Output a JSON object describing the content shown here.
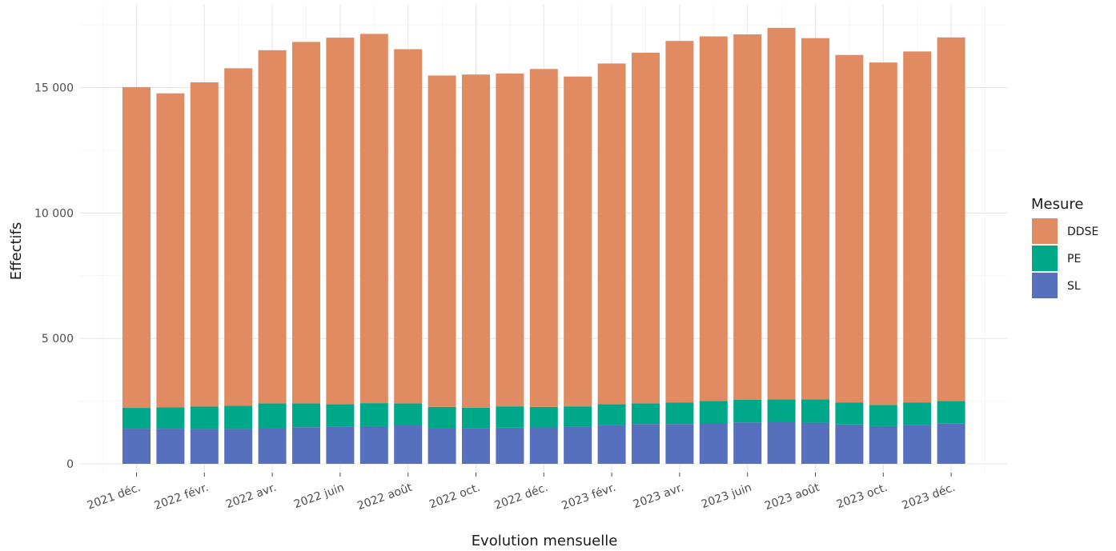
{
  "chart_data": {
    "type": "bar",
    "stacked": true,
    "xlabel": "Evolution mensuelle",
    "ylabel": "Effectifs",
    "ylim": [
      0,
      17900
    ],
    "yticks": [
      0,
      5000,
      10000,
      15000
    ],
    "ytick_labels": [
      "0",
      "5 000",
      "10 000",
      "15 000"
    ],
    "grid": true,
    "legend": {
      "title": "Mesure",
      "position": "right"
    },
    "categories": [
      "2021-12",
      "2022-01",
      "2022-02",
      "2022-03",
      "2022-04",
      "2022-05",
      "2022-06",
      "2022-07",
      "2022-08",
      "2022-09",
      "2022-10",
      "2022-11",
      "2022-12",
      "2023-01",
      "2023-02",
      "2023-03",
      "2023-04",
      "2023-05",
      "2023-06",
      "2023-07",
      "2023-08",
      "2023-09",
      "2023-10",
      "2023-11",
      "2023-12"
    ],
    "xtick_labels": [
      {
        "index": 0,
        "label": "2021 déc."
      },
      {
        "index": 2,
        "label": "2022 févr."
      },
      {
        "index": 4,
        "label": "2022 avr."
      },
      {
        "index": 6,
        "label": "2022 juin"
      },
      {
        "index": 8,
        "label": "2022 août"
      },
      {
        "index": 10,
        "label": "2022 oct."
      },
      {
        "index": 12,
        "label": "2022 déc."
      },
      {
        "index": 14,
        "label": "2023 févr."
      },
      {
        "index": 16,
        "label": "2023 avr."
      },
      {
        "index": 18,
        "label": "2023 juin"
      },
      {
        "index": 20,
        "label": "2023 août"
      },
      {
        "index": 22,
        "label": "2023 oct."
      },
      {
        "index": 24,
        "label": "2023 déc."
      }
    ],
    "series": [
      {
        "name": "SL",
        "color": "#5770BE",
        "values": [
          1400,
          1400,
          1390,
          1390,
          1420,
          1460,
          1470,
          1500,
          1530,
          1420,
          1430,
          1440,
          1450,
          1480,
          1560,
          1590,
          1590,
          1610,
          1650,
          1690,
          1640,
          1570,
          1500,
          1550,
          1600
        ]
      },
      {
        "name": "PE",
        "color": "#00A88A",
        "values": [
          830,
          850,
          890,
          930,
          990,
          950,
          910,
          920,
          880,
          850,
          810,
          850,
          820,
          810,
          820,
          820,
          860,
          900,
          900,
          880,
          930,
          880,
          850,
          900,
          900
        ]
      },
      {
        "name": "DDSE",
        "color": "#E08B61",
        "values": [
          12790,
          12520,
          12930,
          13450,
          14080,
          14410,
          14610,
          14720,
          14120,
          13210,
          13280,
          13270,
          13470,
          13150,
          13580,
          13980,
          14410,
          14530,
          14570,
          14810,
          14400,
          13850,
          13650,
          13990,
          14500
        ]
      }
    ]
  }
}
